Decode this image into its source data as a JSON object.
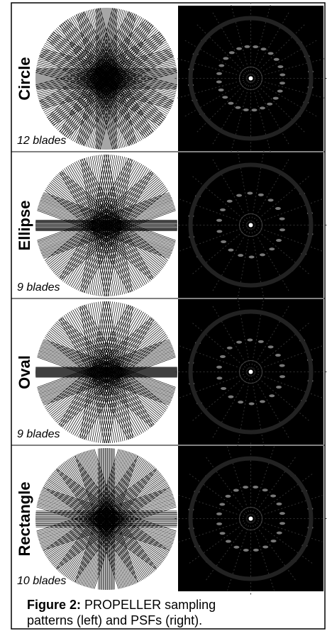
{
  "figure": {
    "panels": [
      {
        "label": "Circle",
        "blades": "12 blades"
      },
      {
        "label": "Ellipse",
        "blades": "9 blades"
      },
      {
        "label": "Oval",
        "blades": "9 blades"
      },
      {
        "label": "Rectangle",
        "blades": "10 blades"
      }
    ],
    "caption": {
      "label": "Figure 2:",
      "text": "PROPELLER sampling patterns (left) and PSFs (right)."
    }
  }
}
